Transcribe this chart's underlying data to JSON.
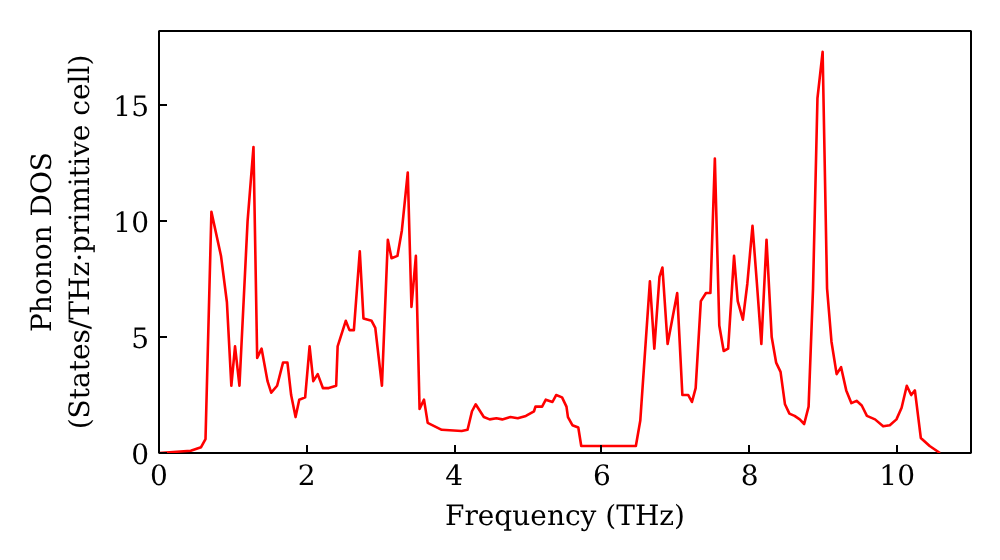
{
  "chart_data": {
    "type": "line",
    "xlabel": "Frequency (THz)",
    "ylabel": "Phonon DOS\n(States/THz·primitive cell)",
    "xlim": [
      0,
      11
    ],
    "ylim": [
      0,
      18.2
    ],
    "xticks": [
      0,
      2,
      4,
      6,
      8,
      10
    ],
    "yticks": [
      0,
      5,
      10,
      15
    ],
    "grid": false,
    "line_style": "solid",
    "series": [
      {
        "color": "#ff0000",
        "x": [
          0,
          0.43,
          0.57,
          0.63,
          0.71,
          0.84,
          0.92,
          0.98,
          1.03,
          1.09,
          1.2,
          1.28,
          1.33,
          1.39,
          1.47,
          1.52,
          1.6,
          1.68,
          1.74,
          1.79,
          1.85,
          1.9,
          1.98,
          2.04,
          2.09,
          2.15,
          2.22,
          2.3,
          2.4,
          2.42,
          2.53,
          2.58,
          2.64,
          2.72,
          2.77,
          2.88,
          2.93,
          3.02,
          3.1,
          3.15,
          3.23,
          3.29,
          3.37,
          3.42,
          3.48,
          3.53,
          3.59,
          3.64,
          3.83,
          4.1,
          4.18,
          4.24,
          4.29,
          4.4,
          4.48,
          4.57,
          4.65,
          4.76,
          4.86,
          4.97,
          5.08,
          5.1,
          5.19,
          5.24,
          5.33,
          5.38,
          5.46,
          5.52,
          5.54,
          5.6,
          5.68,
          5.72,
          6.0,
          6.46,
          6.52,
          6.65,
          6.71,
          6.78,
          6.82,
          6.89,
          7.02,
          7.09,
          7.17,
          7.22,
          7.27,
          7.34,
          7.41,
          7.47,
          7.53,
          7.59,
          7.65,
          7.71,
          7.79,
          7.84,
          7.91,
          7.97,
          8.04,
          8.1,
          8.16,
          8.23,
          8.3,
          8.36,
          8.42,
          8.48,
          8.54,
          8.61,
          8.68,
          8.74,
          8.8,
          8.86,
          8.92,
          8.99,
          9.05,
          9.11,
          9.18,
          9.24,
          9.31,
          9.38,
          9.45,
          9.52,
          9.59,
          9.7,
          9.81,
          9.9,
          9.99,
          10.06,
          10.13,
          10.19,
          10.24,
          10.32,
          10.44,
          10.58
        ],
        "values": [
          0,
          0.1,
          0.25,
          0.6,
          10.4,
          8.5,
          6.5,
          2.9,
          4.6,
          2.9,
          10,
          13.2,
          4.1,
          4.5,
          3.1,
          2.6,
          2.9,
          3.9,
          3.9,
          2.5,
          1.55,
          2.3,
          2.4,
          4.6,
          3.1,
          3.4,
          2.8,
          2.8,
          2.9,
          4.6,
          5.7,
          5.3,
          5.3,
          8.7,
          5.8,
          5.7,
          5.4,
          2.9,
          9.2,
          8.4,
          8.5,
          9.6,
          12.1,
          6.3,
          8.5,
          1.9,
          2.3,
          1.3,
          1.0,
          0.95,
          1.0,
          1.8,
          2.1,
          1.55,
          1.45,
          1.5,
          1.45,
          1.55,
          1.5,
          1.6,
          1.8,
          2.0,
          2.0,
          2.3,
          2.2,
          2.5,
          2.4,
          2.0,
          1.55,
          1.2,
          1.1,
          0.3,
          0.3,
          0.3,
          1.4,
          7.4,
          4.5,
          7.6,
          8.0,
          4.7,
          6.9,
          2.5,
          2.5,
          2.2,
          2.8,
          6.55,
          6.9,
          6.9,
          12.7,
          5.5,
          4.4,
          4.5,
          8.5,
          6.55,
          5.75,
          7.3,
          9.8,
          7.3,
          4.7,
          9.2,
          5.0,
          3.9,
          3.5,
          2.1,
          1.7,
          1.6,
          1.45,
          1.25,
          2.0,
          7.1,
          15.3,
          17.3,
          7.1,
          4.8,
          3.4,
          3.7,
          2.7,
          2.15,
          2.25,
          2.05,
          1.6,
          1.45,
          1.15,
          1.2,
          1.45,
          1.95,
          2.9,
          2.5,
          2.7,
          0.65,
          0.3,
          0
        ]
      }
    ]
  }
}
